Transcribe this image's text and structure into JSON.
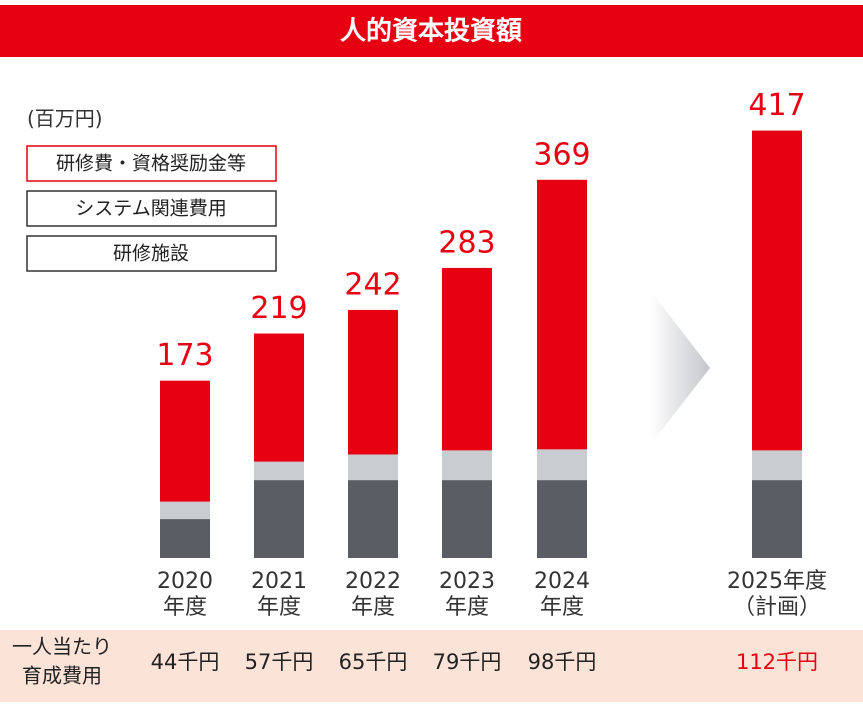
{
  "chart_data": {
    "type": "stacked_bar",
    "title": "人的資本投資額",
    "unit": "(百万円)",
    "categories": [
      [
        "2020",
        "年度"
      ],
      [
        "2021",
        "年度"
      ],
      [
        "2022",
        "年度"
      ],
      [
        "2023",
        "年度"
      ],
      [
        "2024",
        "年度"
      ],
      [
        "2025年度",
        "（計画）"
      ]
    ],
    "series": [
      {
        "name": "研修費・資格奨励金等",
        "color": "#e60012",
        "values": [
          118,
          125,
          141,
          178,
          263,
          312
        ]
      },
      {
        "name": "システム関連費用",
        "color": "#c9ccd0",
        "values": [
          17,
          18,
          25,
          29,
          30,
          29
        ]
      },
      {
        "name": "研修施設",
        "color": "#5b5d64",
        "values": [
          38,
          76,
          76,
          76,
          76,
          76
        ]
      }
    ],
    "totals": [
      173,
      219,
      242,
      283,
      369,
      417
    ],
    "per_person": {
      "label": [
        "一人当たり",
        "育成費用"
      ],
      "values": [
        "44千円",
        "57千円",
        "65千円",
        "79千円",
        "98千円",
        "112千円"
      ]
    }
  }
}
